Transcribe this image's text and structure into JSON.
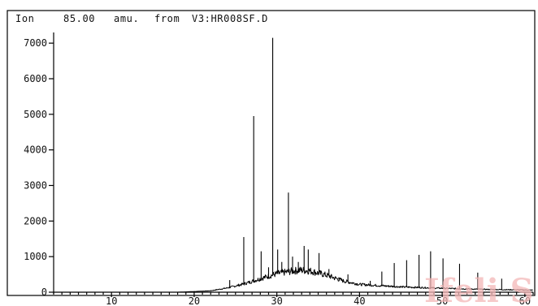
{
  "header": {
    "ion_label": "Ion",
    "ion_value": "85.00",
    "unit_label": "amu.",
    "from_label": "from",
    "file_path": "V3:HR008SF.D"
  },
  "watermark": {
    "text": "Ifeli S"
  },
  "chart_data": {
    "type": "line",
    "title": "",
    "xlabel": "",
    "ylabel": "",
    "xlim": [
      3,
      61
    ],
    "ylim": [
      0,
      7300
    ],
    "grid": false,
    "x_ticks": [
      10,
      20,
      30,
      40,
      50,
      60
    ],
    "x_tick_labels": [
      "10",
      "20",
      "30",
      "40",
      "50",
      "60"
    ],
    "y_ticks": [
      0,
      1000,
      2000,
      3000,
      4000,
      5000,
      6000,
      7000
    ],
    "y_tick_labels": [
      "0",
      "1000",
      "2000",
      "3000",
      "4000",
      "5000",
      "6000",
      "7000"
    ],
    "baseline_hump": {
      "x": [
        3,
        18,
        22,
        24,
        26,
        28,
        30,
        32,
        33,
        34,
        36,
        38,
        40,
        45,
        50,
        55,
        61
      ],
      "y": [
        0,
        0,
        40,
        120,
        230,
        380,
        520,
        600,
        620,
        600,
        480,
        320,
        220,
        150,
        110,
        80,
        60
      ]
    },
    "peaks": [
      {
        "x": 22.6,
        "y": 60
      },
      {
        "x": 24.3,
        "y": 340
      },
      {
        "x": 26.0,
        "y": 1550
      },
      {
        "x": 27.2,
        "y": 4950
      },
      {
        "x": 28.1,
        "y": 1150
      },
      {
        "x": 29.0,
        "y": 700
      },
      {
        "x": 29.5,
        "y": 7150
      },
      {
        "x": 30.1,
        "y": 1200
      },
      {
        "x": 30.6,
        "y": 850
      },
      {
        "x": 31.4,
        "y": 2800
      },
      {
        "x": 31.9,
        "y": 1000
      },
      {
        "x": 32.6,
        "y": 850
      },
      {
        "x": 33.3,
        "y": 1300
      },
      {
        "x": 33.8,
        "y": 1200
      },
      {
        "x": 35.1,
        "y": 1100
      },
      {
        "x": 36.3,
        "y": 650
      },
      {
        "x": 37.5,
        "y": 420
      },
      {
        "x": 38.6,
        "y": 500
      },
      {
        "x": 41.3,
        "y": 320
      },
      {
        "x": 42.7,
        "y": 580
      },
      {
        "x": 44.2,
        "y": 820
      },
      {
        "x": 45.7,
        "y": 900
      },
      {
        "x": 47.2,
        "y": 1050
      },
      {
        "x": 48.6,
        "y": 1150
      },
      {
        "x": 50.1,
        "y": 950
      },
      {
        "x": 52.1,
        "y": 800
      },
      {
        "x": 54.3,
        "y": 550
      },
      {
        "x": 57.2,
        "y": 380
      }
    ]
  }
}
